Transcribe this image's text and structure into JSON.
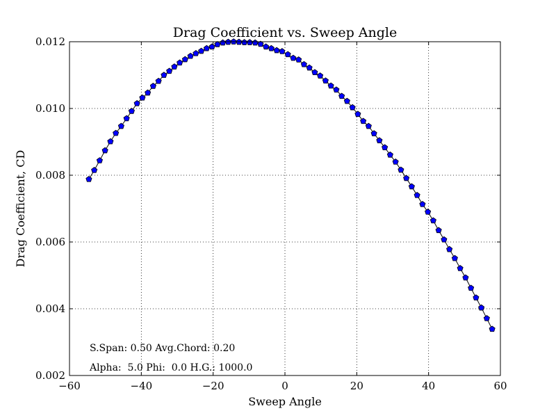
{
  "colors": {
    "background": "#ffffff",
    "line": "#000000",
    "marker_fill": "#0000ff",
    "marker_edge": "#000000",
    "grid": "#000000"
  },
  "chart_data": {
    "type": "line",
    "title": "Drag Coefficient vs. Sweep Angle",
    "xlabel": "Sweep Angle",
    "ylabel": "Drag Coefficient, CD",
    "xlim": [
      -60,
      60
    ],
    "ylim": [
      0.002,
      0.012
    ],
    "xticks": [
      -60,
      -40,
      -20,
      0,
      20,
      40,
      60
    ],
    "xtick_labels": [
      "−60",
      "−40",
      "−20",
      "0",
      "20",
      "40",
      "60"
    ],
    "yticks": [
      0.002,
      0.004,
      0.006,
      0.008,
      0.01,
      0.012
    ],
    "ytick_labels": [
      "0.002",
      "0.004",
      "0.006",
      "0.008",
      "0.010",
      "0.012"
    ],
    "grid": true,
    "grid_style": "dotted",
    "marker": "pentagon",
    "series": [
      {
        "x": [
          -54.6,
          -53.1,
          -51.6,
          -50.1,
          -48.6,
          -47.1,
          -45.6,
          -44.1,
          -42.7,
          -41.2,
          -39.7,
          -38.2,
          -36.7,
          -35.2,
          -33.7,
          -32.2,
          -30.8,
          -29.3,
          -27.8,
          -26.3,
          -24.8,
          -23.3,
          -21.8,
          -20.3,
          -18.8,
          -17.3,
          -15.8,
          -14.3,
          -12.8,
          -11.3,
          -9.8,
          -8.3,
          -6.8,
          -5.3,
          -3.8,
          -2.3,
          -0.8,
          0.8,
          2.3,
          3.8,
          5.3,
          6.8,
          8.3,
          9.8,
          11.3,
          12.8,
          14.3,
          15.8,
          17.3,
          18.8,
          20.3,
          21.8,
          23.3,
          24.8,
          26.3,
          27.8,
          29.3,
          30.8,
          32.3,
          33.8,
          35.3,
          36.8,
          38.3,
          39.8,
          41.3,
          42.8,
          44.3,
          45.8,
          47.3,
          48.8,
          50.3,
          51.8,
          53.2,
          54.7,
          56.2,
          57.7
        ],
        "y": [
          0.00788,
          0.00815,
          0.00844,
          0.00874,
          0.00901,
          0.00926,
          0.00947,
          0.0097,
          0.00992,
          0.01015,
          0.01032,
          0.01047,
          0.01067,
          0.01082,
          0.011,
          0.01112,
          0.01125,
          0.01137,
          0.01147,
          0.01157,
          0.01165,
          0.01172,
          0.0118,
          0.01185,
          0.01192,
          0.01197,
          0.01199,
          0.012,
          0.01199,
          0.01198,
          0.01198,
          0.01197,
          0.01193,
          0.01185,
          0.0118,
          0.01174,
          0.01171,
          0.01162,
          0.01151,
          0.01146,
          0.01132,
          0.01122,
          0.01108,
          0.01098,
          0.01083,
          0.01068,
          0.01056,
          0.01037,
          0.01022,
          0.01003,
          0.00983,
          0.00962,
          0.00947,
          0.00925,
          0.00904,
          0.00883,
          0.00861,
          0.0084,
          0.00816,
          0.00791,
          0.00766,
          0.0074,
          0.00713,
          0.0069,
          0.00664,
          0.00635,
          0.00607,
          0.00578,
          0.00551,
          0.00521,
          0.00493,
          0.00462,
          0.00433,
          0.00403,
          0.00371,
          0.00339
        ]
      }
    ],
    "annotations": [
      "S.Span: 0.50 Avg.Chord: 0.20",
      "Alpha:  5.0 Phi:  0.0 H.G.: 1000.0"
    ]
  }
}
